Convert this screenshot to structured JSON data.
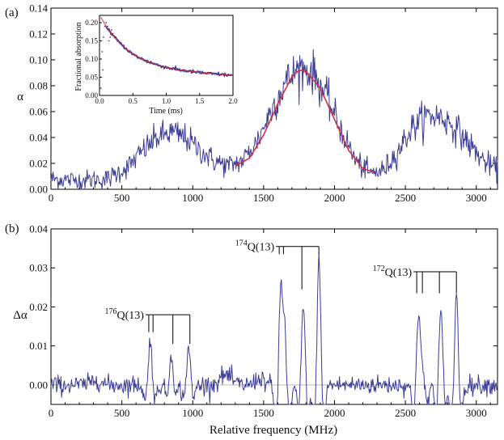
{
  "colors": {
    "data": "#3c3c96",
    "fit": "#d62f3c",
    "inset_points": "#3c3c96",
    "zero_line": "#bdbdbd"
  },
  "chart_data": [
    {
      "id": "panel-a",
      "type": "line",
      "panel_label": "(a)",
      "xlabel": "",
      "ylabel": "α",
      "xlim": [
        0,
        3150
      ],
      "ylim": [
        0,
        0.14
      ],
      "xticks": [
        0,
        500,
        1000,
        1500,
        2000,
        2500,
        3000
      ],
      "yticks": [
        0.0,
        0.02,
        0.04,
        0.06,
        0.08,
        0.1,
        0.12,
        0.14
      ],
      "ytick_labels": [
        "0.00",
        "0.02",
        "0.04",
        "0.06",
        "0.08",
        "0.10",
        "0.12",
        "0.14"
      ],
      "series_envelope": {
        "description_x": [
          0,
          200,
          400,
          550,
          650,
          750,
          850,
          950,
          1050,
          1150,
          1250,
          1350,
          1450,
          1550,
          1650,
          1750,
          1850,
          1950,
          2050,
          2150,
          2250,
          2350,
          2450,
          2550,
          2650,
          2750,
          2850,
          2950,
          3050,
          3150
        ],
        "y": [
          0.008,
          0.007,
          0.008,
          0.018,
          0.03,
          0.04,
          0.044,
          0.04,
          0.03,
          0.022,
          0.018,
          0.022,
          0.036,
          0.06,
          0.082,
          0.094,
          0.09,
          0.07,
          0.045,
          0.022,
          0.012,
          0.015,
          0.03,
          0.048,
          0.057,
          0.056,
          0.048,
          0.035,
          0.022,
          0.015
        ]
      },
      "fit": {
        "x": [
          1300,
          1400,
          1500,
          1600,
          1700,
          1750,
          1800,
          1900,
          2000,
          2100,
          2200,
          2280
        ],
        "y": [
          0.018,
          0.024,
          0.042,
          0.066,
          0.087,
          0.092,
          0.091,
          0.078,
          0.054,
          0.03,
          0.016,
          0.013
        ]
      },
      "inset": {
        "type": "line",
        "xlabel": "Time (ms)",
        "ylabel": "Fractional absorption",
        "xlim": [
          0,
          2.0
        ],
        "ylim": [
          0,
          0.22
        ],
        "xticks": [
          0.0,
          0.5,
          1.0,
          1.5,
          2.0
        ],
        "xtick_labels": [
          "0.0",
          "0.5",
          "1.0",
          "1.5",
          "2.0"
        ],
        "yticks": [
          0.0,
          0.05,
          0.1,
          0.15,
          0.2
        ],
        "ytick_labels": [
          "0.00",
          "0.05",
          "0.10",
          "0.15",
          "0.20"
        ],
        "decay": {
          "x": [
            0.02,
            0.1,
            0.2,
            0.3,
            0.4,
            0.5,
            0.6,
            0.7,
            0.8,
            0.9,
            1.0,
            1.2,
            1.4,
            1.6,
            1.8,
            2.0
          ],
          "y": [
            0.215,
            0.19,
            0.165,
            0.145,
            0.128,
            0.113,
            0.103,
            0.095,
            0.088,
            0.082,
            0.077,
            0.07,
            0.065,
            0.061,
            0.058,
            0.055
          ]
        },
        "early_points": {
          "x": [
            0.02,
            0.04,
            0.05,
            0.06,
            0.08,
            0.1,
            0.12,
            0.14,
            0.16,
            0.18,
            0.2
          ],
          "y": [
            0.02,
            0.12,
            0.07,
            0.16,
            0.19,
            0.2,
            0.19,
            0.15,
            0.16,
            0.18,
            0.17
          ]
        }
      }
    },
    {
      "id": "panel-b",
      "type": "line",
      "panel_label": "(b)",
      "xlabel": "Relative frequency (MHz)",
      "ylabel": "Δα",
      "xlim": [
        0,
        3150
      ],
      "ylim": [
        -0.005,
        0.04
      ],
      "xticks": [
        0,
        500,
        1000,
        1500,
        2000,
        2500,
        3000
      ],
      "yticks": [
        0.0,
        0.01,
        0.02,
        0.03,
        0.04
      ],
      "ytick_labels": [
        "0.00",
        "0.01",
        "0.02",
        "0.03",
        "0.04"
      ],
      "peaks": [
        {
          "x": 700,
          "h": 0.012
        },
        {
          "x": 850,
          "h": 0.008
        },
        {
          "x": 970,
          "h": 0.01
        },
        {
          "x": 1620,
          "h": 0.033
        },
        {
          "x": 1650,
          "h": 0.025
        },
        {
          "x": 1780,
          "h": 0.02
        },
        {
          "x": 1890,
          "h": 0.033
        },
        {
          "x": 2590,
          "h": 0.022
        },
        {
          "x": 2620,
          "h": 0.012
        },
        {
          "x": 2750,
          "h": 0.019
        },
        {
          "x": 2860,
          "h": 0.023
        }
      ],
      "annotations": [
        {
          "sup": "176",
          "text": "Q(13)",
          "lines_x": [
            690,
            720,
            860,
            980
          ],
          "line_top": 0.018,
          "line_bottom": [
            0.0135,
            0.0135,
            0.0105,
            0.0105
          ]
        },
        {
          "sup": "174",
          "text": "Q(13)",
          "lines_x": [
            1610,
            1640,
            1770,
            1890
          ],
          "line_top": 0.0355,
          "line_bottom": [
            0.0335,
            0.0335,
            0.0245,
            0.0335
          ]
        },
        {
          "sup": "172",
          "text": "Q(13)",
          "lines_x": [
            2580,
            2620,
            2740,
            2860
          ],
          "line_top": 0.029,
          "line_bottom": [
            0.0235,
            0.0235,
            0.0235,
            0.0235
          ]
        }
      ]
    }
  ]
}
